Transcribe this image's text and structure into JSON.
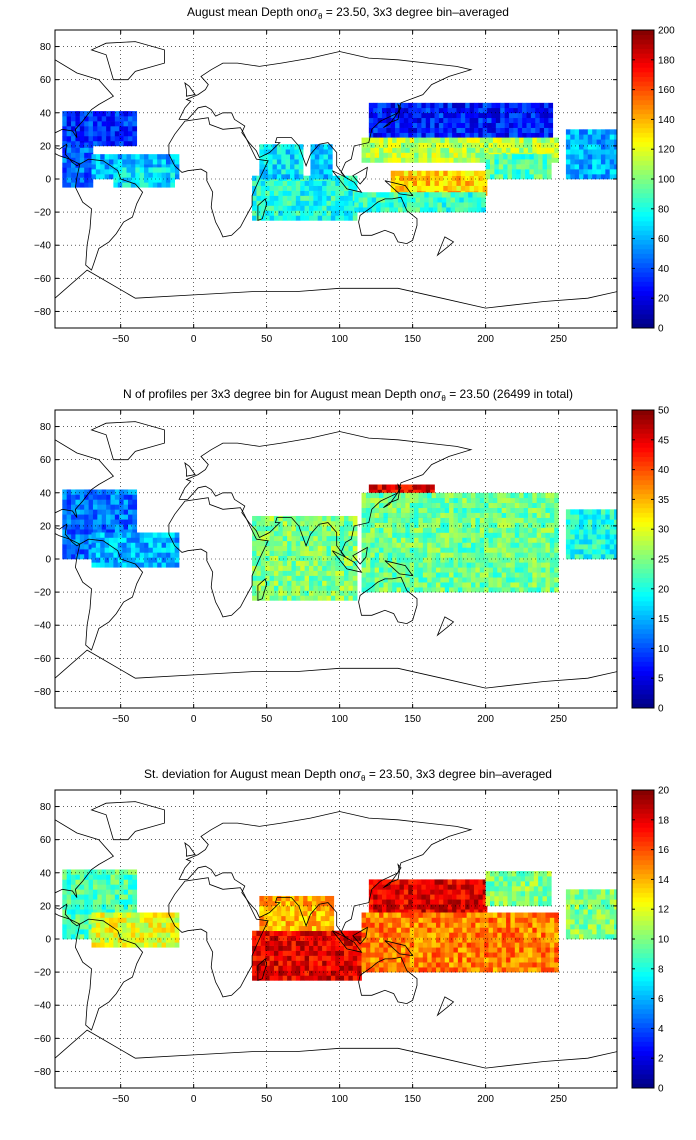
{
  "colors": {
    "frame": "#000000",
    "grid": "#000000",
    "coast": "#000000"
  },
  "chart_data": [
    {
      "type": "heatmap",
      "title": {
        "pre": "August mean Depth on",
        "symbol": "σ",
        "sub": "θ",
        "post": " = 23.50, 3x3 degree bin–averaged"
      },
      "xlim": [
        -95,
        290
      ],
      "ylim": [
        -90,
        90
      ],
      "xticks": [
        -50,
        0,
        50,
        100,
        150,
        200,
        250
      ],
      "yticks": [
        -80,
        -60,
        -40,
        -20,
        0,
        20,
        40,
        60,
        80
      ],
      "xticklabels": [
        "−50",
        "0",
        "50",
        "100",
        "150",
        "200",
        "250"
      ],
      "yticklabels": [
        "−80",
        "−60",
        "−40",
        "−20",
        "0",
        "20",
        "40",
        "60",
        "80"
      ],
      "grid": true,
      "colorbar": {
        "min": 0,
        "max": 200,
        "ticks": [
          0,
          20,
          40,
          60,
          80,
          100,
          120,
          140,
          160,
          180,
          200
        ],
        "ticklabels": [
          "0",
          "20",
          "40",
          "60",
          "80",
          "100",
          "120",
          "140",
          "160",
          "180",
          "200"
        ]
      },
      "colormap": "jet",
      "regions": [
        {
          "lon": [
            -90,
            -40
          ],
          "lat": [
            20,
            40
          ],
          "value": 35
        },
        {
          "lon": [
            -90,
            -70
          ],
          "lat": [
            -5,
            20
          ],
          "value": 45
        },
        {
          "lon": [
            -70,
            -10
          ],
          "lat": [
            0,
            15
          ],
          "value": 60
        },
        {
          "lon": [
            -55,
            -15
          ],
          "lat": [
            -5,
            5
          ],
          "value": 70
        },
        {
          "lon": [
            40,
            110
          ],
          "lat": [
            -25,
            0
          ],
          "value": 80
        },
        {
          "lon": [
            45,
            75
          ],
          "lat": [
            0,
            20
          ],
          "value": 70
        },
        {
          "lon": [
            80,
            95
          ],
          "lat": [
            0,
            20
          ],
          "value": 65
        },
        {
          "lon": [
            120,
            245
          ],
          "lat": [
            25,
            45
          ],
          "value": 30
        },
        {
          "lon": [
            115,
            250
          ],
          "lat": [
            10,
            25
          ],
          "value": 110
        },
        {
          "lon": [
            135,
            200
          ],
          "lat": [
            -10,
            5
          ],
          "value": 135
        },
        {
          "lon": [
            200,
            245
          ],
          "lat": [
            0,
            15
          ],
          "value": 90
        },
        {
          "lon": [
            110,
            200
          ],
          "lat": [
            -20,
            -10
          ],
          "value": 85
        },
        {
          "lon": [
            255,
            290
          ],
          "lat": [
            0,
            30
          ],
          "value": 60
        }
      ]
    },
    {
      "type": "heatmap",
      "title": {
        "pre": "N of profiles per 3x3 degree bin for August mean Depth on",
        "symbol": "σ",
        "sub": "θ",
        "post": " = 23.50 (26499 in total)"
      },
      "xlim": [
        -95,
        290
      ],
      "ylim": [
        -90,
        90
      ],
      "xticks": [
        -50,
        0,
        50,
        100,
        150,
        200,
        250
      ],
      "yticks": [
        -80,
        -60,
        -40,
        -20,
        0,
        20,
        40,
        60,
        80
      ],
      "xticklabels": [
        "−50",
        "0",
        "50",
        "100",
        "150",
        "200",
        "250"
      ],
      "yticklabels": [
        "−80",
        "−60",
        "−40",
        "−20",
        "0",
        "20",
        "40",
        "60",
        "80"
      ],
      "grid": true,
      "colorbar": {
        "min": 0,
        "max": 50,
        "ticks": [
          0,
          5,
          10,
          15,
          20,
          25,
          30,
          35,
          40,
          45,
          50
        ],
        "ticklabels": [
          "0",
          "5",
          "10",
          "15",
          "20",
          "25",
          "30",
          "35",
          "40",
          "45",
          "50"
        ]
      },
      "colormap": "jet",
      "regions": [
        {
          "lon": [
            -90,
            -40
          ],
          "lat": [
            0,
            40
          ],
          "value": 12
        },
        {
          "lon": [
            -70,
            -10
          ],
          "lat": [
            -5,
            15
          ],
          "value": 15
        },
        {
          "lon": [
            40,
            110
          ],
          "lat": [
            -25,
            25
          ],
          "value": 25
        },
        {
          "lon": [
            120,
            165
          ],
          "lat": [
            15,
            45
          ],
          "value": 45
        },
        {
          "lon": [
            115,
            250
          ],
          "lat": [
            -20,
            40
          ],
          "value": 24
        },
        {
          "lon": [
            255,
            290
          ],
          "lat": [
            0,
            30
          ],
          "value": 20
        }
      ]
    },
    {
      "type": "heatmap",
      "title": {
        "pre": "St. deviation for August mean Depth on",
        "symbol": "σ",
        "sub": "θ",
        "post": " = 23.50, 3x3 degree bin–averaged"
      },
      "xlim": [
        -95,
        290
      ],
      "ylim": [
        -90,
        90
      ],
      "xticks": [
        -50,
        0,
        50,
        100,
        150,
        200,
        250
      ],
      "yticks": [
        -80,
        -60,
        -40,
        -20,
        0,
        20,
        40,
        60,
        80
      ],
      "xticklabels": [
        "−50",
        "0",
        "50",
        "100",
        "150",
        "200",
        "250"
      ],
      "yticklabels": [
        "−80",
        "−60",
        "−40",
        "−20",
        "0",
        "20",
        "40",
        "60",
        "80"
      ],
      "grid": true,
      "colorbar": {
        "min": 0,
        "max": 20,
        "ticks": [
          0,
          2,
          4,
          6,
          8,
          10,
          12,
          14,
          16,
          18,
          20
        ],
        "ticklabels": [
          "0",
          "2",
          "4",
          "6",
          "8",
          "10",
          "12",
          "14",
          "16",
          "18",
          "20"
        ]
      },
      "colormap": "jet",
      "regions": [
        {
          "lon": [
            -90,
            -40
          ],
          "lat": [
            0,
            40
          ],
          "value": 9
        },
        {
          "lon": [
            -70,
            -10
          ],
          "lat": [
            -5,
            15
          ],
          "value": 12
        },
        {
          "lon": [
            40,
            115
          ],
          "lat": [
            -25,
            5
          ],
          "value": 18
        },
        {
          "lon": [
            45,
            95
          ],
          "lat": [
            5,
            25
          ],
          "value": 14
        },
        {
          "lon": [
            120,
            200
          ],
          "lat": [
            15,
            35
          ],
          "value": 18
        },
        {
          "lon": [
            115,
            250
          ],
          "lat": [
            -20,
            15
          ],
          "value": 15
        },
        {
          "lon": [
            200,
            245
          ],
          "lat": [
            20,
            40
          ],
          "value": 10
        },
        {
          "lon": [
            255,
            290
          ],
          "lat": [
            0,
            30
          ],
          "value": 10
        }
      ]
    }
  ]
}
